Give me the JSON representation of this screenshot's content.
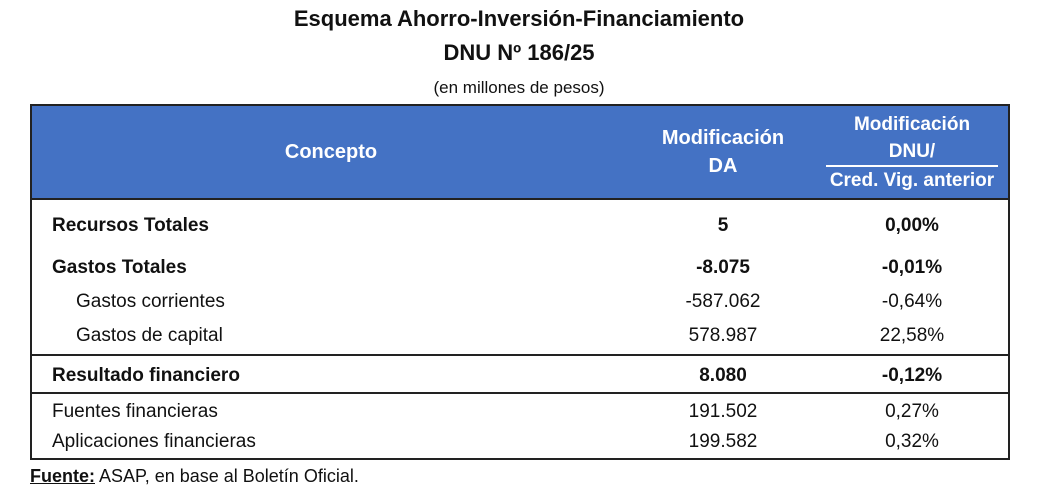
{
  "title": {
    "line1": "Esquema Ahorro-Inversión-Financiamiento",
    "line2": "DNU Nº 186/25",
    "line3": "(en millones de pesos)"
  },
  "header": {
    "concepto": "Concepto",
    "col1_line1": "Modificación",
    "col1_line2": "DA",
    "col2_line1": "Modificación",
    "col2_line2": "DNU/",
    "col2_line3": "Cred. Vig. anterior"
  },
  "rows": [
    {
      "label": "Recursos Totales",
      "v1": "5",
      "v2": "0,00%"
    },
    {
      "label": "Gastos Totales",
      "v1": "-8.075",
      "v2": "-0,01%"
    },
    {
      "label": "Gastos corrientes",
      "v1": "-587.062",
      "v2": "-0,64%"
    },
    {
      "label": "Gastos de capital",
      "v1": "578.987",
      "v2": "22,58%"
    },
    {
      "label": "Resultado financiero",
      "v1": "8.080",
      "v2": "-0,12%"
    },
    {
      "label": "Fuentes financieras",
      "v1": "191.502",
      "v2": "0,27%"
    },
    {
      "label": "Aplicaciones financieras",
      "v1": "199.582",
      "v2": "0,32%"
    }
  ],
  "source": {
    "label": "Fuente:",
    "text": " ASAP, en base al Boletín Oficial."
  }
}
